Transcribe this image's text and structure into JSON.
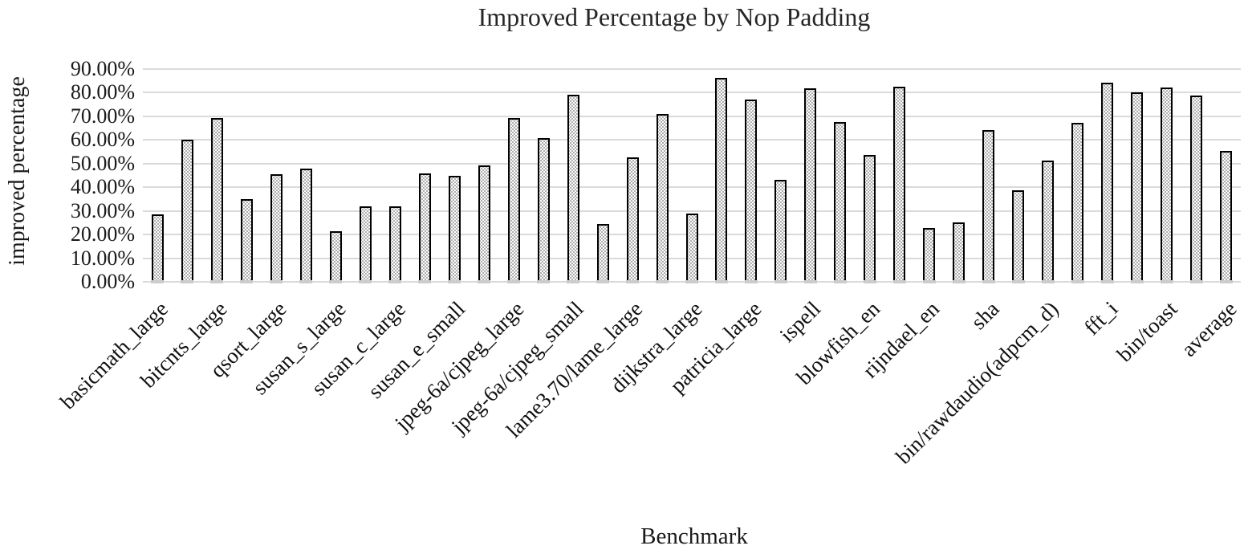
{
  "chart_data": {
    "type": "bar",
    "title": "Improved Percentage by Nop Padding",
    "xlabel": "Benchmark",
    "ylabel": "improved percentage",
    "ylim": [
      0,
      90
    ],
    "grid": true,
    "legend_position": "none",
    "bar_fill": "dotted-pattern",
    "bar_border_color": "#000000",
    "gridline_color": "#dadada",
    "yticks": [
      "90.00%",
      "80.00%",
      "70.00%",
      "60.00%",
      "50.00%",
      "40.00%",
      "30.00%",
      "20.00%",
      "10.00%",
      "0.00%"
    ],
    "note": "37 bars; axis shows a label under every other bar (19 labels); unlabeled bars have empty label",
    "bars": [
      {
        "label": "basicmath_large",
        "value": 28.4
      },
      {
        "label": "",
        "value": 60.0
      },
      {
        "label": "bitcnts_large",
        "value": 69.3
      },
      {
        "label": "",
        "value": 34.9
      },
      {
        "label": "qsort_large",
        "value": 45.6
      },
      {
        "label": "",
        "value": 47.8
      },
      {
        "label": "susan_s_large",
        "value": 21.3
      },
      {
        "label": "",
        "value": 31.9
      },
      {
        "label": "susan_c_large",
        "value": 31.8
      },
      {
        "label": "",
        "value": 45.9
      },
      {
        "label": "susan_e_small",
        "value": 44.7
      },
      {
        "label": "",
        "value": 49.2
      },
      {
        "label": "jpeg-6a/cjpeg_large",
        "value": 69.2
      },
      {
        "label": "",
        "value": 60.8
      },
      {
        "label": "jpeg-6a/cjpeg_small",
        "value": 79.0
      },
      {
        "label": "",
        "value": 24.5
      },
      {
        "label": "lame3.70/lame_large",
        "value": 52.6
      },
      {
        "label": "",
        "value": 71.0
      },
      {
        "label": "dijkstra_large",
        "value": 28.9
      },
      {
        "label": "",
        "value": 86.3
      },
      {
        "label": "patricia_large",
        "value": 77.0
      },
      {
        "label": "",
        "value": 43.2
      },
      {
        "label": "ispell",
        "value": 81.8
      },
      {
        "label": "",
        "value": 67.7
      },
      {
        "label": "blowfish_en",
        "value": 53.8
      },
      {
        "label": "",
        "value": 82.7
      },
      {
        "label": "rijndael_en",
        "value": 22.8
      },
      {
        "label": "",
        "value": 25.3
      },
      {
        "label": "sha",
        "value": 64.3
      },
      {
        "label": "",
        "value": 38.7
      },
      {
        "label": "bin/rawdaudio(adpcm_d)",
        "value": 51.2
      },
      {
        "label": "",
        "value": 67.4
      },
      {
        "label": "fft_i",
        "value": 84.2
      },
      {
        "label": "",
        "value": 80.2
      },
      {
        "label": "bin/toast",
        "value": 82.2
      },
      {
        "label": "",
        "value": 78.9
      },
      {
        "label": "average",
        "value": 55.2
      }
    ]
  }
}
